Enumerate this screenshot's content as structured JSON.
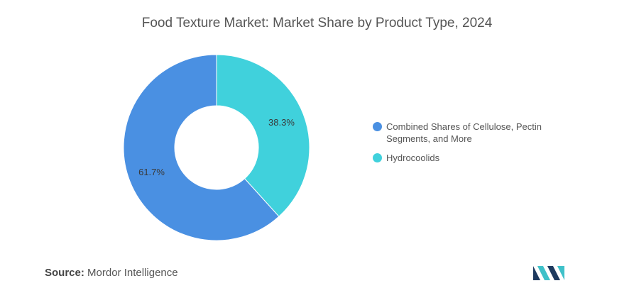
{
  "chart_data": {
    "type": "pie",
    "title": "Food Texture Market: Market Share by Product Type, 2024",
    "slices": [
      {
        "label": "Hydrocoolids",
        "value": 38.3,
        "display": "38.3%",
        "color": "#40d1dc"
      },
      {
        "label": "Combined Shares of Cellulose, Pectin Segments, and More",
        "value": 61.7,
        "display": "61.7%",
        "color": "#4a90e2"
      }
    ],
    "legend": {
      "placement": "right",
      "entries": [
        {
          "label": "Combined Shares of Cellulose, Pectin Segments, and More",
          "color": "#4a90e2"
        },
        {
          "label": "Hydrocoolids",
          "color": "#40d1dc"
        }
      ]
    }
  },
  "footer": {
    "source_label": "Source:",
    "source_value": "Mordor Intelligence"
  },
  "logo": {
    "icon": "mordor-intelligence-logo-icon",
    "colors": [
      "#1e3a5f",
      "#3fc1c9"
    ]
  }
}
